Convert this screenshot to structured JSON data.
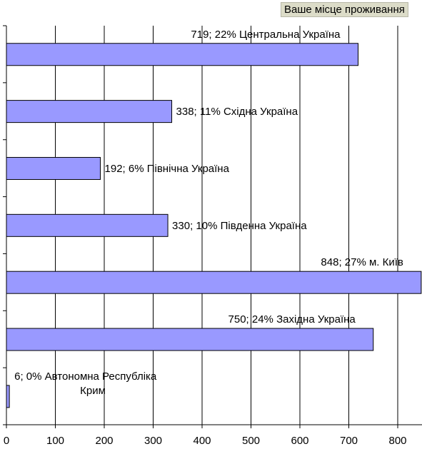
{
  "chart_data": {
    "type": "bar",
    "orientation": "horizontal",
    "title": "Ваше місце проживання",
    "categories": [
      "Центральна Україна",
      "Східна Україна",
      "Північна Україна",
      "Південна Україна",
      "м. Київ",
      "Західна Україна",
      "Автономна Республіка Крим"
    ],
    "values": [
      719,
      338,
      192,
      330,
      848,
      750,
      6
    ],
    "percents": [
      "22%",
      "11%",
      "6%",
      "10%",
      "27%",
      "24%",
      "0%"
    ],
    "data_labels": [
      [
        "719; 22% Центральна Україна"
      ],
      [
        "338; 11% Східна Україна"
      ],
      [
        "192; 6% Північна Україна"
      ],
      [
        "330; 10% Південна Україна"
      ],
      [
        "848; 27% м. Київ"
      ],
      [
        "750; 24% Західна Україна"
      ],
      [
        "6; 0% Автономна Республіка",
        "Крим"
      ]
    ],
    "xlim": [
      0,
      850
    ],
    "xticks": [
      0,
      100,
      200,
      300,
      400,
      500,
      600,
      700,
      800
    ],
    "grid": true,
    "bar_color": "#9999ff",
    "bar_border_color": "#000000",
    "grid_color": "#000000"
  }
}
